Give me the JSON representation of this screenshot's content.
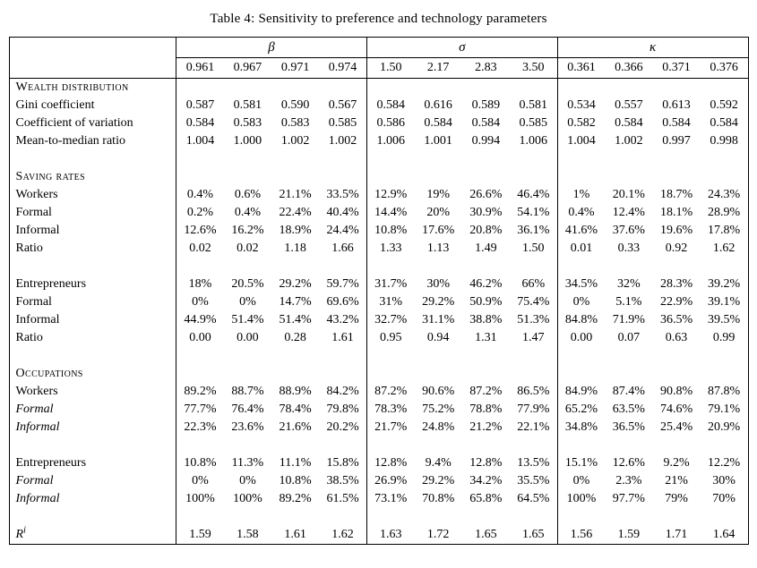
{
  "page": {
    "title": "Table 4: Sensitivity to preference and technology parameters"
  },
  "table": {
    "groups": [
      {
        "symbol": "β",
        "name": "beta",
        "columns": [
          "0.961",
          "0.967",
          "0.971",
          "0.974"
        ]
      },
      {
        "symbol": "σ",
        "name": "sigma",
        "columns": [
          "1.50",
          "2.17",
          "2.83",
          "3.50"
        ]
      },
      {
        "symbol": "κ",
        "name": "kappa",
        "columns": [
          "0.361",
          "0.366",
          "0.371",
          "0.376"
        ]
      }
    ],
    "rows": [
      {
        "label": "Wealth distribution",
        "style": "section",
        "values": []
      },
      {
        "label": "Gini coefficient",
        "style": "normal",
        "values": [
          "0.587",
          "0.581",
          "0.590",
          "0.567",
          "0.584",
          "0.616",
          "0.589",
          "0.581",
          "0.534",
          "0.557",
          "0.613",
          "0.592"
        ]
      },
      {
        "label": "Coefficient of variation",
        "style": "normal",
        "values": [
          "0.584",
          "0.583",
          "0.583",
          "0.585",
          "0.586",
          "0.584",
          "0.584",
          "0.585",
          "0.582",
          "0.584",
          "0.584",
          "0.584"
        ]
      },
      {
        "label": "Mean-to-median ratio",
        "style": "normal",
        "values": [
          "1.004",
          "1.000",
          "1.002",
          "1.002",
          "1.006",
          "1.001",
          "0.994",
          "1.006",
          "1.004",
          "1.002",
          "0.997",
          "0.998"
        ]
      },
      {
        "label": "",
        "style": "spacer",
        "values": []
      },
      {
        "label": "Saving rates",
        "style": "section",
        "values": []
      },
      {
        "label": "Workers",
        "style": "normal",
        "values": [
          "0.4%",
          "0.6%",
          "21.1%",
          "33.5%",
          "12.9%",
          "19%",
          "26.6%",
          "46.4%",
          "1%",
          "20.1%",
          "18.7%",
          "24.3%"
        ]
      },
      {
        "label": "Formal",
        "style": "normal",
        "values": [
          "0.2%",
          "0.4%",
          "22.4%",
          "40.4%",
          "14.4%",
          "20%",
          "30.9%",
          "54.1%",
          "0.4%",
          "12.4%",
          "18.1%",
          "28.9%"
        ]
      },
      {
        "label": "Informal",
        "style": "normal",
        "values": [
          "12.6%",
          "16.2%",
          "18.9%",
          "24.4%",
          "10.8%",
          "17.6%",
          "20.8%",
          "36.1%",
          "41.6%",
          "37.6%",
          "19.6%",
          "17.8%"
        ]
      },
      {
        "label": "Ratio",
        "style": "normal",
        "values": [
          "0.02",
          "0.02",
          "1.18",
          "1.66",
          "1.33",
          "1.13",
          "1.49",
          "1.50",
          "0.01",
          "0.33",
          "0.92",
          "1.62"
        ]
      },
      {
        "label": "",
        "style": "spacer",
        "values": []
      },
      {
        "label": "Entrepreneurs",
        "style": "normal",
        "values": [
          "18%",
          "20.5%",
          "29.2%",
          "59.7%",
          "31.7%",
          "30%",
          "46.2%",
          "66%",
          "34.5%",
          "32%",
          "28.3%",
          "39.2%"
        ]
      },
      {
        "label": "Formal",
        "style": "normal",
        "values": [
          "0%",
          "0%",
          "14.7%",
          "69.6%",
          "31%",
          "29.2%",
          "50.9%",
          "75.4%",
          "0%",
          "5.1%",
          "22.9%",
          "39.1%"
        ]
      },
      {
        "label": "Informal",
        "style": "normal",
        "values": [
          "44.9%",
          "51.4%",
          "51.4%",
          "43.2%",
          "32.7%",
          "31.1%",
          "38.8%",
          "51.3%",
          "84.8%",
          "71.9%",
          "36.5%",
          "39.5%"
        ]
      },
      {
        "label": "Ratio",
        "style": "normal",
        "values": [
          "0.00",
          "0.00",
          "0.28",
          "1.61",
          "0.95",
          "0.94",
          "1.31",
          "1.47",
          "0.00",
          "0.07",
          "0.63",
          "0.99"
        ]
      },
      {
        "label": "",
        "style": "spacer",
        "values": []
      },
      {
        "label": "Occupations",
        "style": "section",
        "values": []
      },
      {
        "label": "Workers",
        "style": "normal",
        "values": [
          "89.2%",
          "88.7%",
          "88.9%",
          "84.2%",
          "87.2%",
          "90.6%",
          "87.2%",
          "86.5%",
          "84.9%",
          "87.4%",
          "90.8%",
          "87.8%"
        ]
      },
      {
        "label": "Formal",
        "style": "italic",
        "values": [
          "77.7%",
          "76.4%",
          "78.4%",
          "79.8%",
          "78.3%",
          "75.2%",
          "78.8%",
          "77.9%",
          "65.2%",
          "63.5%",
          "74.6%",
          "79.1%"
        ]
      },
      {
        "label": "Informal",
        "style": "italic",
        "values": [
          "22.3%",
          "23.6%",
          "21.6%",
          "20.2%",
          "21.7%",
          "24.8%",
          "21.2%",
          "22.1%",
          "34.8%",
          "36.5%",
          "25.4%",
          "20.9%"
        ]
      },
      {
        "label": "",
        "style": "spacer",
        "values": []
      },
      {
        "label": "Entrepreneurs",
        "style": "normal",
        "values": [
          "10.8%",
          "11.3%",
          "11.1%",
          "15.8%",
          "12.8%",
          "9.4%",
          "12.8%",
          "13.5%",
          "15.1%",
          "12.6%",
          "9.2%",
          "12.2%"
        ]
      },
      {
        "label": "Formal",
        "style": "italic",
        "values": [
          "0%",
          "0%",
          "10.8%",
          "38.5%",
          "26.9%",
          "29.2%",
          "34.2%",
          "35.5%",
          "0%",
          "2.3%",
          "21%",
          "30%"
        ]
      },
      {
        "label": "Informal",
        "style": "italic",
        "values": [
          "100%",
          "100%",
          "89.2%",
          "61.5%",
          "73.1%",
          "70.8%",
          "65.8%",
          "64.5%",
          "100%",
          "97.7%",
          "79%",
          "70%"
        ]
      },
      {
        "label": "",
        "style": "spacer",
        "values": []
      },
      {
        "label": "R",
        "sup": "i",
        "style": "math",
        "values": [
          "1.59",
          "1.58",
          "1.61",
          "1.62",
          "1.63",
          "1.72",
          "1.65",
          "1.65",
          "1.56",
          "1.59",
          "1.71",
          "1.64"
        ]
      }
    ]
  }
}
